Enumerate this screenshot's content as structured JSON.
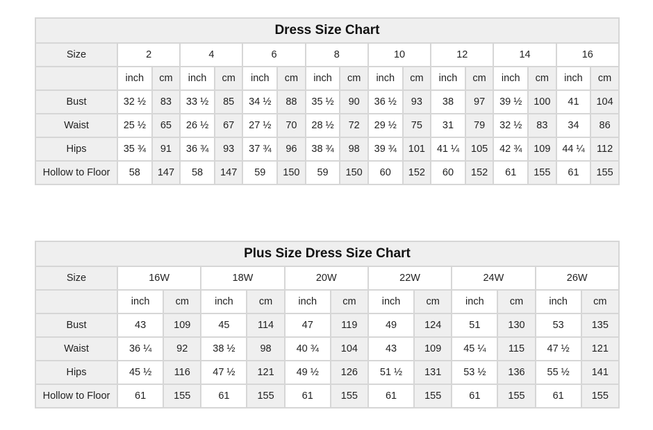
{
  "tables": [
    {
      "title": "Dress Size Chart",
      "size_label": "Size",
      "sizes": [
        "2",
        "4",
        "6",
        "8",
        "10",
        "12",
        "14",
        "16"
      ],
      "units": [
        "inch",
        "cm"
      ],
      "rows": [
        {
          "label": "Bust",
          "values": [
            "32 ½",
            "83",
            "33 ½",
            "85",
            "34 ½",
            "88",
            "35 ½",
            "90",
            "36 ½",
            "93",
            "38",
            "97",
            "39 ½",
            "100",
            "41",
            "104"
          ]
        },
        {
          "label": "Waist",
          "values": [
            "25 ½",
            "65",
            "26 ½",
            "67",
            "27 ½",
            "70",
            "28 ½",
            "72",
            "29 ½",
            "75",
            "31",
            "79",
            "32 ½",
            "83",
            "34",
            "86"
          ]
        },
        {
          "label": "Hips",
          "values": [
            "35 ¾",
            "91",
            "36 ¾",
            "93",
            "37 ¾",
            "96",
            "38 ¾",
            "98",
            "39 ¾",
            "101",
            "41 ¼",
            "105",
            "42 ¾",
            "109",
            "44 ¼",
            "112"
          ]
        },
        {
          "label": "Hollow to Floor",
          "values": [
            "58",
            "147",
            "58",
            "147",
            "59",
            "150",
            "59",
            "150",
            "60",
            "152",
            "60",
            "152",
            "61",
            "155",
            "61",
            "155"
          ]
        }
      ]
    },
    {
      "title": "Plus Size Dress Size Chart",
      "size_label": "Size",
      "sizes": [
        "16W",
        "18W",
        "20W",
        "22W",
        "24W",
        "26W"
      ],
      "units": [
        "inch",
        "cm"
      ],
      "rows": [
        {
          "label": "Bust",
          "values": [
            "43",
            "109",
            "45",
            "114",
            "47",
            "119",
            "49",
            "124",
            "51",
            "130",
            "53",
            "135"
          ]
        },
        {
          "label": "Waist",
          "values": [
            "36 ¼",
            "92",
            "38 ½",
            "98",
            "40 ¾",
            "104",
            "43",
            "109",
            "45 ¼",
            "115",
            "47 ½",
            "121"
          ]
        },
        {
          "label": "Hips",
          "values": [
            "45 ½",
            "116",
            "47 ½",
            "121",
            "49 ½",
            "126",
            "51 ½",
            "131",
            "53 ½",
            "136",
            "55 ½",
            "141"
          ]
        },
        {
          "label": "Hollow to Floor",
          "values": [
            "61",
            "155",
            "61",
            "155",
            "61",
            "155",
            "61",
            "155",
            "61",
            "155",
            "61",
            "155"
          ]
        }
      ]
    }
  ]
}
